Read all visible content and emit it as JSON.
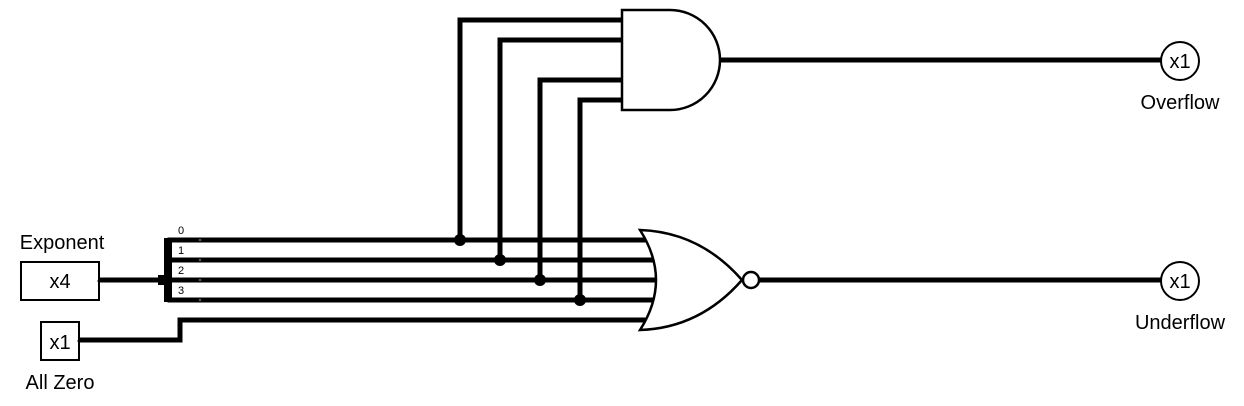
{
  "inputs": {
    "exponent": {
      "label": "Exponent",
      "pin_text": "x4"
    },
    "all_zero": {
      "label": "All Zero",
      "pin_text": "x1"
    }
  },
  "outputs": {
    "overflow": {
      "label": "Overflow",
      "pin_text": "x1"
    },
    "underflow": {
      "label": "Underflow",
      "pin_text": "x1"
    }
  },
  "splitter": {
    "bit_labels": [
      "0",
      "1",
      "2",
      "3"
    ]
  },
  "gates": {
    "and_gate": {
      "kind": "AND",
      "inputs": 4
    },
    "nor_gate": {
      "kind": "NOR",
      "inputs": 5
    }
  },
  "colors": {
    "wire": "#000000",
    "background": "#ffffff"
  }
}
